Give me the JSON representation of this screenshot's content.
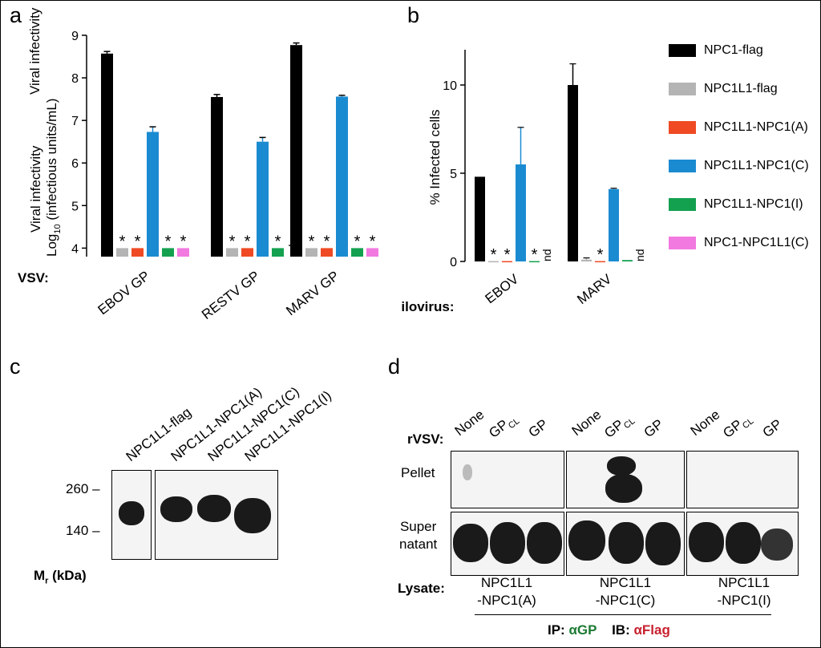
{
  "panels": {
    "a": "a",
    "b": "b",
    "c": "c",
    "d": "d"
  },
  "legend": [
    {
      "label": "NPC1-flag",
      "color": "#000000"
    },
    {
      "label": "NPC1L1-flag",
      "color": "#b4b4b4"
    },
    {
      "label": "NPC1L1-NPC1(A)",
      "color": "#ef4a23"
    },
    {
      "label": "NPC1L1-NPC1(C)",
      "color": "#1b8bd1"
    },
    {
      "label": "NPC1L1-NPC1(I)",
      "color": "#13a150"
    },
    {
      "label": "NPC1-NPC1L1(C)",
      "color": "#f279e0"
    }
  ],
  "chart_data": [
    {
      "type": "bar",
      "panel": "a",
      "ylabel_line1": "Viral infectivity",
      "ylabel_log": "Log",
      "ylabel_sub": "10",
      "ylabel_line2_rest": " (infectious units/mL)",
      "ylim": [
        3.8,
        9
      ],
      "yticks": [
        "4",
        "5",
        "6",
        "7",
        "8",
        "9"
      ],
      "group_title": "VSV:",
      "categories": [
        "EBOV GP",
        "RESTV GP",
        "MARV GP"
      ],
      "series": [
        {
          "name": "NPC1-flag",
          "values": [
            8.57,
            7.55,
            8.77
          ],
          "errors": [
            0.05,
            0.06,
            0.05
          ]
        },
        {
          "name": "NPC1L1-flag",
          "values": [
            4.0,
            4.0,
            4.0
          ],
          "errors": [
            0,
            0,
            0
          ]
        },
        {
          "name": "NPC1L1-NPC1(A)",
          "values": [
            4.0,
            4.0,
            4.0
          ],
          "errors": [
            0,
            0,
            0
          ]
        },
        {
          "name": "NPC1L1-NPC1(C)",
          "values": [
            6.73,
            6.5,
            7.56
          ],
          "errors": [
            0.12,
            0.1,
            0.03
          ]
        },
        {
          "name": "NPC1L1-NPC1(I)",
          "values": [
            4.0,
            4.0,
            4.0
          ],
          "errors": [
            0,
            0,
            0
          ]
        },
        {
          "name": "NPC1-NPC1L1(C)",
          "values": [
            4.0,
            null,
            4.0
          ],
          "errors": [
            0,
            0,
            0
          ]
        }
      ],
      "marks": {
        "star": "*",
        "nd": "nd"
      }
    },
    {
      "type": "bar",
      "panel": "b",
      "ylabel": "% Infected cells",
      "ylim": [
        0,
        12
      ],
      "yticks": [
        "0",
        "5",
        "10"
      ],
      "group_title": "Filovirus:",
      "categories": [
        "EBOV",
        "MARV"
      ],
      "series": [
        {
          "name": "NPC1-flag",
          "values": [
            4.8,
            10.0
          ],
          "errors": [
            0,
            1.2
          ]
        },
        {
          "name": "NPC1L1-flag",
          "values": [
            0.02,
            0.1
          ],
          "errors": [
            0,
            0.1
          ]
        },
        {
          "name": "NPC1L1-NPC1(A)",
          "values": [
            0.02,
            0.02
          ],
          "errors": [
            0,
            0
          ]
        },
        {
          "name": "NPC1L1-NPC1(C)",
          "values": [
            5.5,
            4.1
          ],
          "errors": [
            2.1,
            0.05
          ]
        },
        {
          "name": "NPC1L1-NPC1(I)",
          "values": [
            0.02,
            0.08
          ],
          "errors": [
            0,
            0
          ]
        },
        {
          "name": "NPC1-NPC1L1(C)",
          "values": [
            null,
            null
          ],
          "errors": [
            0,
            0
          ]
        }
      ],
      "marks": {
        "star": "*",
        "nd": "nd"
      }
    }
  ],
  "panel_c": {
    "lanes": [
      "NPC1L1-flag",
      "NPC1L1-NPC1(A)",
      "NPC1L1-NPC1(C)",
      "NPC1L1-NPC1(I)"
    ],
    "markers": [
      "260",
      "140"
    ],
    "mr_label": "M",
    "mr_sub": "r",
    "mr_rest": " (kDa)"
  },
  "panel_d": {
    "rvsv_label": "rVSV:",
    "lane_none": "None",
    "lane_gpcl": "GP",
    "lane_gpcl_sub": "CL",
    "lane_gp": "GP",
    "row_pellet": "Pellet",
    "row_super1": "Super",
    "row_super2": "natant",
    "lysate_label": "Lysate:",
    "lysates": [
      {
        "l1": "NPC1L1",
        "l2": "-NPC1(A)"
      },
      {
        "l1": "NPC1L1",
        "l2": "-NPC1(C)"
      },
      {
        "l1": "NPC1L1",
        "l2": "-NPC1(I)"
      }
    ],
    "ip_label": "IP: ",
    "ip_value": "αGP",
    "ib_label": "IB: ",
    "ib_value": "αFlag",
    "ip_color": "#1c7a33",
    "ib_color": "#c8202e"
  }
}
